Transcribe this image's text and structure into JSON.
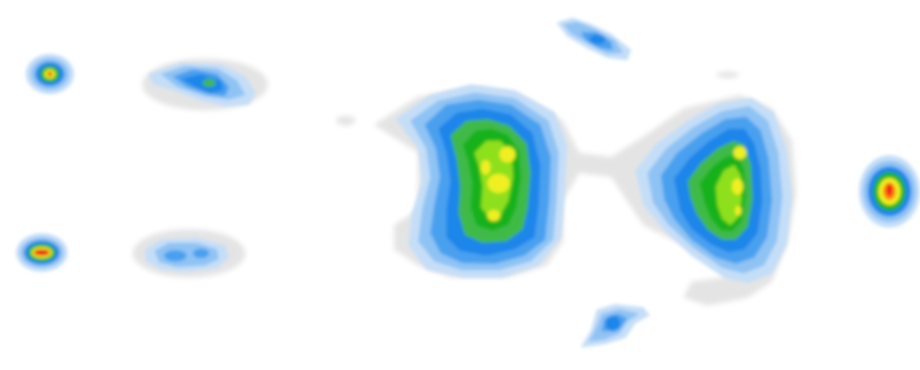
{
  "heatmap": {
    "colors": {
      "background": "#ffffff",
      "halo": "#e4e4e4",
      "very_low": "#c5def8",
      "low": "#8fc3f4",
      "medium_low": "#4aa0ef",
      "medium": "#1e86ea",
      "medium_high": "#3fba47",
      "high": "#16b21a",
      "very_high": "#8ee01a",
      "peak": "#f0ef22",
      "hot": "#ff8a00",
      "hottest": "#ee1b1b"
    },
    "regions": [
      {
        "name": "small-hotspot-top-left",
        "peak_level": "hottest"
      },
      {
        "name": "blob-top-left",
        "peak_level": "medium"
      },
      {
        "name": "small-hotspot-bottom-left",
        "peak_level": "hottest"
      },
      {
        "name": "blob-bottom-left",
        "peak_level": "low"
      },
      {
        "name": "central-cluster",
        "peak_level": "peak"
      },
      {
        "name": "right-cluster",
        "peak_level": "peak"
      },
      {
        "name": "blob-top-right",
        "peak_level": "medium"
      },
      {
        "name": "blob-bottom-middle",
        "peak_level": "medium"
      },
      {
        "name": "hotspot-far-right",
        "peak_level": "hottest"
      }
    ]
  }
}
